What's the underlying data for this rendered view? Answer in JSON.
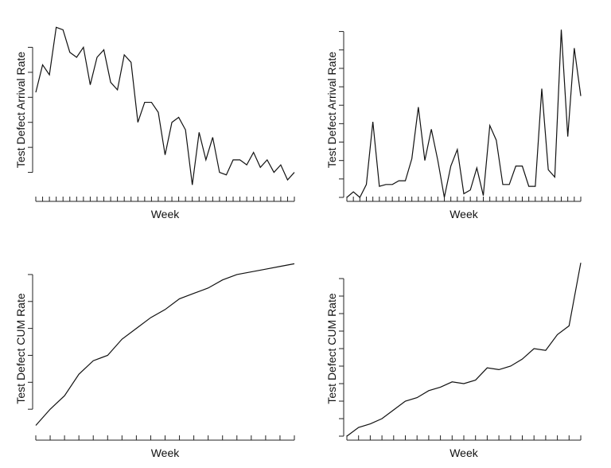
{
  "chart_data": [
    {
      "type": "line",
      "y_label": "Test Defect Arrival Rate",
      "x_label": "Week",
      "color": "#111",
      "values": [
        4.2,
        5.3,
        4.9,
        6.8,
        6.7,
        5.8,
        5.6,
        6.0,
        4.5,
        5.6,
        5.9,
        4.6,
        4.3,
        5.7,
        5.4,
        3.0,
        3.8,
        3.8,
        3.4,
        1.7,
        3.0,
        3.2,
        2.7,
        0.5,
        2.6,
        1.5,
        2.4,
        1.0,
        0.9,
        1.5,
        1.5,
        1.3,
        1.8,
        1.2,
        1.5,
        1.0,
        1.3,
        0.7,
        1.0
      ],
      "ylim": [
        0,
        7
      ],
      "yticks": [
        1,
        2,
        3,
        4,
        5,
        6
      ],
      "xlim": [
        1,
        39
      ],
      "xticks": [
        1,
        2,
        3,
        4,
        5,
        6,
        7,
        8,
        9,
        10,
        11,
        12,
        13,
        14,
        15,
        16,
        17,
        18,
        19,
        20,
        21,
        22,
        23,
        24,
        25,
        26,
        27,
        28,
        29,
        30,
        31,
        32,
        33,
        34,
        35,
        36,
        37,
        38,
        39
      ]
    },
    {
      "type": "line",
      "y_label": "Test Defect Arrival Rate",
      "x_label": "Week",
      "color": "#111",
      "values": [
        0,
        0.3,
        0,
        0.7,
        4.1,
        0.6,
        0.7,
        0.7,
        0.9,
        0.9,
        2.1,
        4.9,
        2.0,
        3.7,
        2.0,
        0,
        1.7,
        2.6,
        0.2,
        0.4,
        1.6,
        0.1,
        3.9,
        3.1,
        0.7,
        0.7,
        1.7,
        1.7,
        0.6,
        0.6,
        5.9,
        1.5,
        1.1,
        9.1,
        3.3,
        8.1,
        5.5
      ],
      "ylim": [
        0,
        9.5
      ],
      "yticks": [
        0,
        1,
        2,
        3,
        4,
        5,
        6,
        7,
        8,
        9
      ],
      "xlim": [
        1,
        37
      ],
      "xticks": [
        1,
        2,
        3,
        4,
        5,
        6,
        7,
        8,
        9,
        10,
        11,
        12,
        13,
        14,
        15,
        16,
        17,
        18,
        19,
        20,
        21,
        22,
        23,
        24,
        25,
        26,
        27,
        28,
        29,
        30,
        31,
        32,
        33,
        34,
        35,
        36,
        37
      ]
    },
    {
      "type": "line",
      "y_label": "Test Defect CUM Rate",
      "x_label": "Week",
      "color": "#111",
      "values": [
        0.4,
        1.0,
        1.5,
        2.3,
        2.8,
        3.0,
        3.6,
        4.0,
        4.4,
        4.7,
        5.1,
        5.3,
        5.5,
        5.8,
        6.0,
        6.1,
        6.2,
        6.3,
        6.4
      ],
      "ylim": [
        0,
        6.5
      ],
      "yticks": [
        1,
        2,
        3,
        4,
        5,
        6
      ],
      "xlim": [
        1,
        19
      ],
      "xticks": [
        1,
        2,
        3,
        4,
        5,
        6,
        7,
        8,
        9,
        10,
        11,
        12,
        13,
        14,
        15,
        16,
        17,
        18,
        19
      ]
    },
    {
      "type": "line",
      "y_label": "Test Defect CUM Rate",
      "x_label": "Week",
      "color": "#111",
      "values": [
        0,
        0.5,
        0.7,
        1.0,
        1.5,
        2.0,
        2.2,
        2.6,
        2.8,
        3.1,
        3.0,
        3.2,
        3.9,
        3.8,
        4.0,
        4.4,
        5.0,
        4.9,
        5.8,
        6.3,
        9.9
      ],
      "ylim": [
        0,
        10
      ],
      "yticks": [
        0,
        1,
        2,
        3,
        4,
        5,
        6,
        7,
        8,
        9
      ],
      "xlim": [
        1,
        21
      ],
      "xticks": [
        1,
        2,
        3,
        4,
        5,
        6,
        7,
        8,
        9,
        10,
        11,
        12,
        13,
        14,
        15,
        16,
        17,
        18,
        19,
        20,
        21
      ]
    }
  ]
}
